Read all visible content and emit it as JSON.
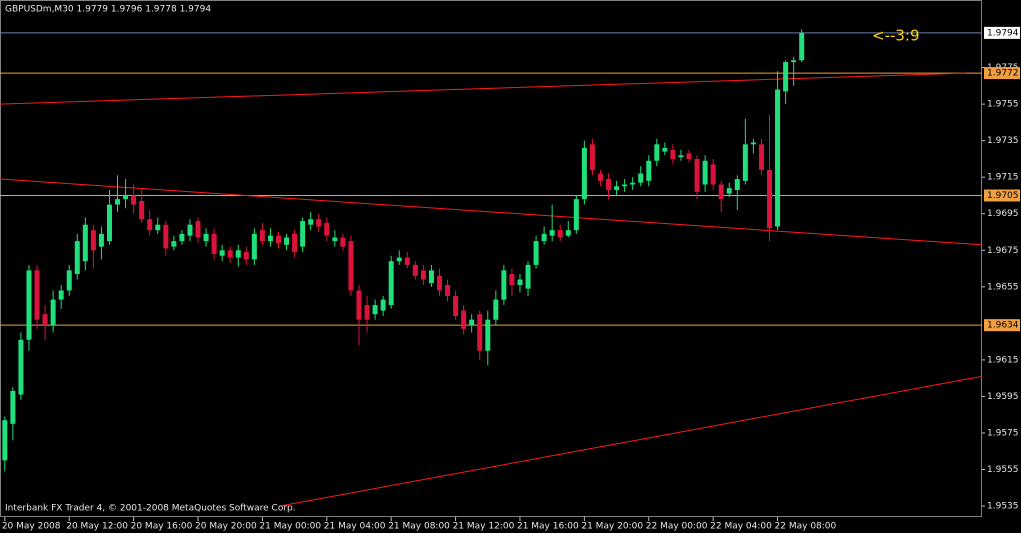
{
  "chart_data": {
    "type": "candlestick",
    "title": "GBPUSDm,M30  1.9779 1.9796 1.9778 1.9794",
    "footer": "Interbank FX Trader 4, © 2001-2008 MetaQuotes Software Corp.",
    "annotation": {
      "text": "<--3:9",
      "color": "#ffd700"
    },
    "up_color": "#1fe07a",
    "down_color": "#dc143c",
    "open": [
      1.956,
      1.958,
      1.9596,
      1.9626,
      1.9664,
      1.964,
      1.9634,
      1.9648,
      1.9653,
      1.9662,
      1.9669,
      1.9686,
      1.9677,
      1.968,
      1.97,
      1.9703,
      1.9705,
      1.9702,
      1.9692,
      1.9686,
      1.9689,
      1.9677,
      1.968,
      1.9683,
      1.9691,
      1.968,
      1.9684,
      1.9672,
      1.9675,
      1.9671,
      1.9674,
      1.967,
      1.9686,
      1.968,
      1.9683,
      1.9678,
      1.9684,
      1.9677,
      1.9689,
      1.9692,
      1.969,
      1.968,
      1.9682,
      1.968,
      1.9653,
      1.9645,
      1.964,
      1.9642,
      1.9645,
      1.9669,
      1.9671,
      1.9667,
      1.9664,
      1.9657,
      1.9661,
      1.9656,
      1.965,
      1.9642,
      1.9634,
      1.964,
      1.962,
      1.9637,
      1.9648,
      1.9662,
      1.9656,
      1.9654,
      1.9667,
      1.968,
      1.9683,
      1.9686,
      1.9683,
      1.9686,
      1.9703,
      1.9733,
      1.9717,
      1.9714,
      1.9708,
      1.971,
      1.9711,
      1.9712,
      1.9713,
      1.9724,
      1.9729,
      1.973,
      1.9726,
      1.9728,
      1.9725,
      1.9711,
      1.9722,
      1.9711,
      1.9706,
      1.9708,
      1.9713,
      1.9733,
      1.9733,
      1.9719,
      1.9688,
      1.9762,
      1.9778,
      1.9779
    ],
    "high": [
      1.9584,
      1.96,
      1.963,
      1.9667,
      1.9667,
      1.9645,
      1.9653,
      1.9656,
      1.9667,
      1.9684,
      1.9693,
      1.9689,
      1.9688,
      1.9708,
      1.9716,
      1.9714,
      1.9711,
      1.9708,
      1.9697,
      1.9693,
      1.9691,
      1.9683,
      1.9686,
      1.9692,
      1.9693,
      1.9687,
      1.9687,
      1.9678,
      1.9677,
      1.9678,
      1.9677,
      1.9687,
      1.969,
      1.9687,
      1.9685,
      1.9684,
      1.9686,
      1.9693,
      1.9696,
      1.9695,
      1.9693,
      1.9686,
      1.9684,
      1.9683,
      1.9656,
      1.965,
      1.9648,
      1.965,
      1.9672,
      1.9675,
      1.9674,
      1.9669,
      1.9667,
      1.9667,
      1.9665,
      1.9659,
      1.9653,
      1.9645,
      1.964,
      1.9642,
      1.9642,
      1.9653,
      1.9667,
      1.9665,
      1.9662,
      1.9669,
      1.9683,
      1.9688,
      1.97,
      1.9689,
      1.9691,
      1.9705,
      1.9735,
      1.9736,
      1.9719,
      1.9717,
      1.9713,
      1.9714,
      1.9715,
      1.9721,
      1.9727,
      1.9736,
      1.9734,
      1.9733,
      1.973,
      1.973,
      1.9727,
      1.9727,
      1.9725,
      1.9713,
      1.9712,
      1.9716,
      1.9747,
      1.9736,
      1.9736,
      1.9749,
      1.9773,
      1.9779,
      1.9781,
      1.9796
    ],
    "low": [
      1.9554,
      1.9571,
      1.9593,
      1.962,
      1.9632,
      1.9626,
      1.963,
      1.9643,
      1.965,
      1.9659,
      1.9664,
      1.9665,
      1.967,
      1.9678,
      1.9696,
      1.9698,
      1.9695,
      1.969,
      1.9683,
      1.9684,
      1.9672,
      1.9675,
      1.9678,
      1.968,
      1.9679,
      1.9677,
      1.967,
      1.9669,
      1.9668,
      1.9666,
      1.9667,
      1.9667,
      1.9678,
      1.9677,
      1.9676,
      1.9675,
      1.9671,
      1.9674,
      1.9686,
      1.9685,
      1.968,
      1.9677,
      1.9675,
      1.965,
      1.9623,
      1.963,
      1.9637,
      1.9639,
      1.9643,
      1.9667,
      1.9665,
      1.9659,
      1.9656,
      1.9655,
      1.965,
      1.9647,
      1.9637,
      1.9629,
      1.963,
      1.9615,
      1.9612,
      1.9634,
      1.9645,
      1.965,
      1.9652,
      1.965,
      1.9665,
      1.9678,
      1.968,
      1.968,
      1.9682,
      1.9684,
      1.97,
      1.9716,
      1.971,
      1.9703,
      1.9705,
      1.9707,
      1.9708,
      1.971,
      1.971,
      1.9721,
      1.9727,
      1.9722,
      1.9724,
      1.9723,
      1.9703,
      1.9707,
      1.9708,
      1.9696,
      1.9704,
      1.9697,
      1.9711,
      1.9728,
      1.9716,
      1.968,
      1.9686,
      1.9755,
      1.9765,
      1.9778
    ],
    "close": [
      1.9582,
      1.9598,
      1.9626,
      1.9664,
      1.9637,
      1.9634,
      1.9648,
      1.9653,
      1.9664,
      1.968,
      1.9689,
      1.9675,
      1.9684,
      1.97,
      1.9703,
      1.9705,
      1.97,
      1.9692,
      1.9686,
      1.9689,
      1.9676,
      1.968,
      1.9684,
      1.9689,
      1.9682,
      1.9684,
      1.9673,
      1.9675,
      1.9671,
      1.9675,
      1.967,
      1.9684,
      1.968,
      1.9683,
      1.9679,
      1.9682,
      1.9674,
      1.9691,
      1.9692,
      1.9688,
      1.9683,
      1.9682,
      1.9677,
      1.9653,
      1.9637,
      1.9637,
      1.9645,
      1.9648,
      1.9669,
      1.9671,
      1.9667,
      1.9661,
      1.9659,
      1.9664,
      1.9653,
      1.965,
      1.9639,
      1.9632,
      1.9637,
      1.962,
      1.9637,
      1.9648,
      1.9664,
      1.9656,
      1.9659,
      1.9667,
      1.968,
      1.9684,
      1.9686,
      1.9682,
      1.9686,
      1.9703,
      1.9731,
      1.9719,
      1.9713,
      1.9708,
      1.971,
      1.9711,
      1.9712,
      1.9717,
      1.9724,
      1.9733,
      1.9731,
      1.9725,
      1.9727,
      1.9725,
      1.9707,
      1.9724,
      1.9711,
      1.9703,
      1.9709,
      1.9714,
      1.9733,
      1.9734,
      1.9719,
      1.9687,
      1.9763,
      1.9778,
      1.9779,
      1.9794
    ],
    "xlim": [
      -0.6,
      121.4
    ],
    "xticks": [
      {
        "value": 0,
        "label": "20 May 2008"
      },
      {
        "value": 8,
        "label": "20 May 12:00"
      },
      {
        "value": 16,
        "label": "20 May 16:00"
      },
      {
        "value": 24,
        "label": "20 May 20:00"
      },
      {
        "value": 32,
        "label": "21 May 00:00"
      },
      {
        "value": 40,
        "label": "21 May 04:00"
      },
      {
        "value": 48,
        "label": "21 May 08:00"
      },
      {
        "value": 56,
        "label": "21 May 12:00"
      },
      {
        "value": 64,
        "label": "21 May 16:00"
      },
      {
        "value": 72,
        "label": "21 May 20:00"
      },
      {
        "value": 80,
        "label": "22 May 00:00"
      },
      {
        "value": 88,
        "label": "22 May 04:00"
      },
      {
        "value": 96,
        "label": "22 May 08:00"
      }
    ],
    "ylim": [
      1.9529,
      1.9812
    ],
    "yticks": [
      1.9775,
      1.9755,
      1.9735,
      1.9715,
      1.9695,
      1.9675,
      1.9655,
      1.9615,
      1.9595,
      1.9575,
      1.9555,
      1.9535
    ],
    "hlines": [
      {
        "value": 1.9794,
        "color": "#6d7fae",
        "label_bg": "#ffffff"
      },
      {
        "value": 1.9772,
        "color": "#f0a040",
        "label_bg": "#f0a040"
      },
      {
        "value": 1.9705,
        "color": "#f0a040",
        "label_bg": "#f0a040"
      },
      {
        "value": 1.9634,
        "color": "#f0a040",
        "label_bg": "#f0a040"
      }
    ],
    "trendlines": [
      {
        "color": "#ff1a1a",
        "x": [
          -0.6,
          119.3
        ],
        "y": [
          1.9755,
          1.9772
        ]
      },
      {
        "color": "#ff1a1a",
        "x": [
          -0.6,
          121.4
        ],
        "y": [
          1.9714,
          1.9678
        ]
      },
      {
        "color": "#ff1a1a",
        "x": [
          34.2,
          121.4
        ],
        "y": [
          1.9535,
          1.9606
        ]
      }
    ]
  }
}
